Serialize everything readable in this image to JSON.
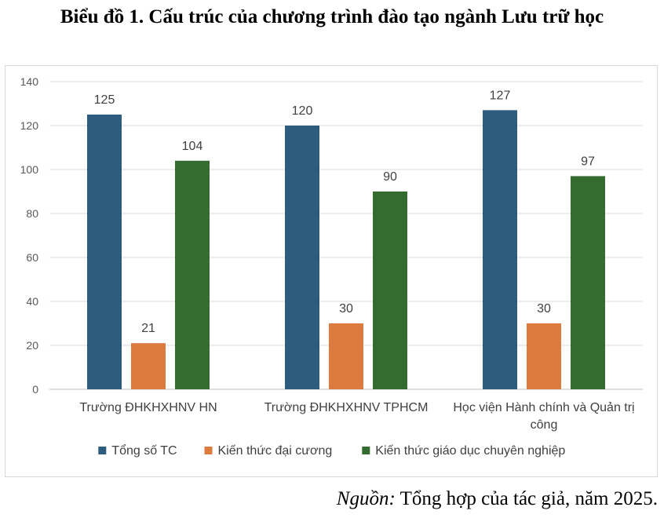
{
  "chart_data": {
    "type": "bar",
    "title": "Biểu đồ 1. Cấu trúc của chương trình đào tạo ngành Lưu trữ học",
    "categories": [
      "Trường ĐHKHXHNV HN",
      "Trường ĐHKHXHNV TPHCM",
      "Học viện Hành chính và Quản trị công"
    ],
    "series": [
      {
        "name": "Tổng  số TC",
        "color": "#2e5c7e",
        "values": [
          125,
          120,
          127
        ]
      },
      {
        "name": "Kiến thức đại cương",
        "color": "#dd7a3e",
        "values": [
          21,
          30,
          30
        ]
      },
      {
        "name": "Kiến thức giáo dục chuyên nghiệp",
        "color": "#346b2e",
        "values": [
          104,
          90,
          97
        ]
      }
    ],
    "ylim": [
      0,
      140
    ],
    "yticks": [
      0,
      20,
      40,
      60,
      80,
      100,
      120,
      140
    ],
    "grid": true,
    "legend_position": "bottom",
    "xlabel": "",
    "ylabel": ""
  },
  "source": {
    "label": "Nguồn:",
    "text": " Tổng hợp của tác giả, năm 2025."
  }
}
